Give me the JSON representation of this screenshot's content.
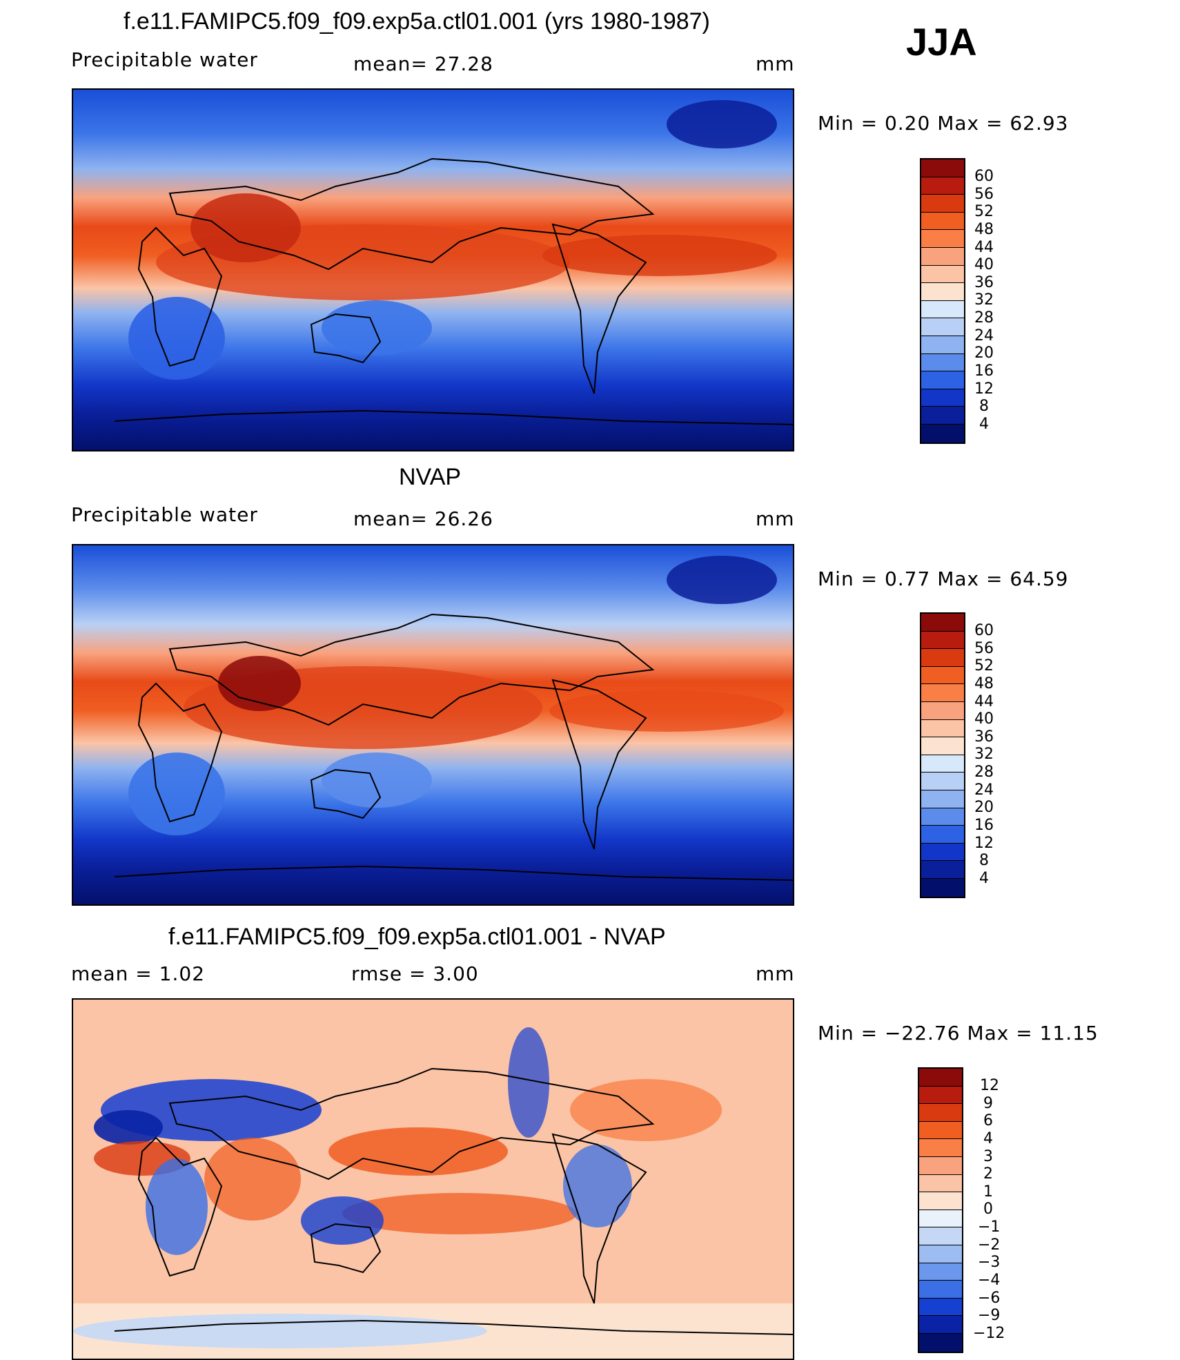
{
  "season": "JJA",
  "panels": [
    {
      "title": "f.e11.FAMIPC5.f09_f09.exp5a.ctl01.001 (yrs 1980-1987)",
      "variable": "Precipitable water",
      "stat": "mean=   27.28",
      "units": "mm",
      "minmax": "Min  =     0.20  Max  =    62.93",
      "colorbar_levels": [
        "60",
        "56",
        "52",
        "48",
        "44",
        "40",
        "36",
        "32",
        "28",
        "24",
        "20",
        "16",
        "12",
        "8",
        "4"
      ],
      "colors": [
        "#8b0a0a",
        "#b71c0e",
        "#d93a10",
        "#f05e22",
        "#f97f46",
        "#f9a27e",
        "#fbc4a6",
        "#fce3d0",
        "#d6e8fa",
        "#b8d0f5",
        "#8fb3f0",
        "#5b8ceb",
        "#2e62e4",
        "#1237c8",
        "#0a1f9a",
        "#03106b"
      ]
    },
    {
      "title": "NVAP",
      "variable": "Precipitable water",
      "stat": "mean=   26.26",
      "units": "mm",
      "minmax": "Min  =     0.77  Max  =    64.59",
      "colorbar_levels": [
        "60",
        "56",
        "52",
        "48",
        "44",
        "40",
        "36",
        "32",
        "28",
        "24",
        "20",
        "16",
        "12",
        "8",
        "4"
      ],
      "colors": [
        "#8b0a0a",
        "#b71c0e",
        "#d93a10",
        "#f05e22",
        "#f97f46",
        "#f9a27e",
        "#fbc4a6",
        "#fce3d0",
        "#d6e8fa",
        "#b8d0f5",
        "#8fb3f0",
        "#5b8ceb",
        "#2e62e4",
        "#1237c8",
        "#0a1f9a",
        "#03106b"
      ]
    },
    {
      "title": "f.e11.FAMIPC5.f09_f09.exp5a.ctl01.001 - NVAP",
      "stat_left": "mean  =      1.02",
      "stat_center": "rmse  =      3.00",
      "units": "mm",
      "minmax": "Min  = −22.76  Max  =    11.15",
      "colorbar_levels": [
        "12",
        "9",
        "6",
        "4",
        "3",
        "2",
        "1",
        "0",
        "−1",
        "−2",
        "−3",
        "−4",
        "−6",
        "−9",
        "−12"
      ],
      "colors": [
        "#8b0a0a",
        "#b71c0e",
        "#d93a10",
        "#f05e22",
        "#f97f46",
        "#f9a27e",
        "#fbc4a6",
        "#fce3d0",
        "#e9f1fb",
        "#c4d8f6",
        "#9dbcf1",
        "#6b97ec",
        "#3a6fe6",
        "#1540d2",
        "#0a23a6",
        "#03106b"
      ]
    }
  ]
}
